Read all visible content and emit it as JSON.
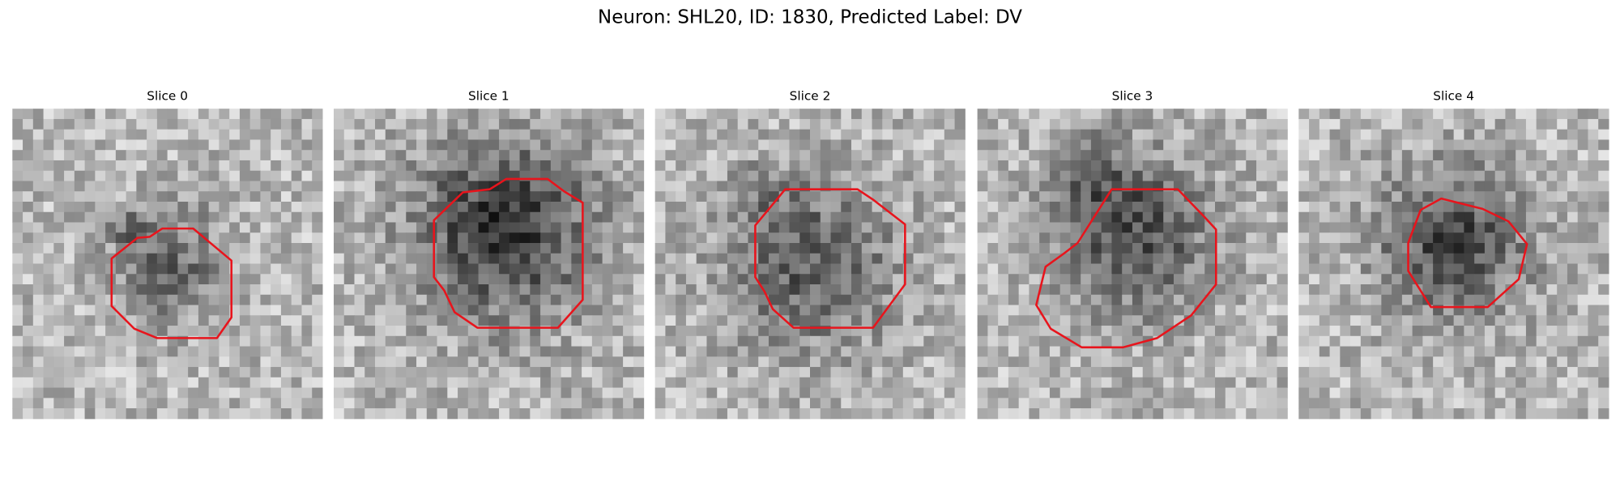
{
  "title": "Neuron: SHL20, ID: 1830, Predicted Label: DV",
  "panels": [
    {
      "title": "Slice 0"
    },
    {
      "title": "Slice 1"
    },
    {
      "title": "Slice 2"
    },
    {
      "title": "Slice 3"
    },
    {
      "title": "Slice 4"
    }
  ]
}
